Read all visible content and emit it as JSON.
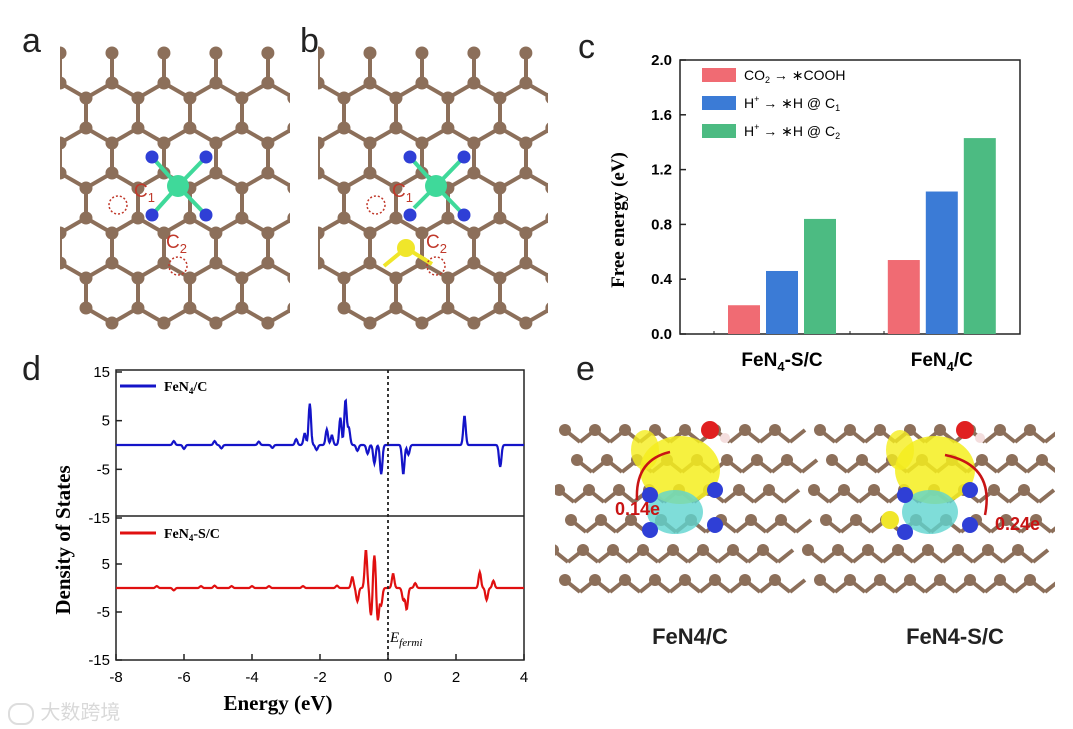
{
  "panels": {
    "a": {
      "letter": "a",
      "site1": "C",
      "site1_sub": "1",
      "site2": "C",
      "site2_sub": "2"
    },
    "b": {
      "letter": "b",
      "site1": "C",
      "site1_sub": "1",
      "site2": "C",
      "site2_sub": "2"
    },
    "c": {
      "letter": "c"
    },
    "d": {
      "letter": "d"
    },
    "e": {
      "letter": "e",
      "left_label": "FeN4/C",
      "left_charge": "0.14e",
      "right_label": "FeN4-S/C",
      "right_charge": "0.24e"
    }
  },
  "colors": {
    "carbon": "#8c6f5a",
    "nitrogen": "#2f3fd6",
    "iron": "#3fd99a",
    "sulfur": "#f0e62a",
    "circle": "#c0392b",
    "red_series": "#f06b73",
    "blue_series": "#3b7bd6",
    "green_series": "#4cbb82"
  },
  "chart_data": [
    {
      "type": "bar",
      "title": "",
      "ylabel": "Free energy (eV)",
      "xlabel": "",
      "ylim": [
        0.0,
        2.0
      ],
      "yticks": [
        "0.0",
        "0.4",
        "0.8",
        "1.2",
        "1.6",
        "2.0"
      ],
      "categories": [
        "FeN4-S/C",
        "FeN4/C"
      ],
      "series": [
        {
          "name": "CO2 → *COOH",
          "values": [
            0.21,
            0.54
          ]
        },
        {
          "name": "H+ → *H @ C1",
          "values": [
            0.46,
            1.04
          ]
        },
        {
          "name": "H+ → *H @ C2",
          "values": [
            0.84,
            1.43
          ]
        }
      ],
      "legend": "top-left"
    },
    {
      "type": "line",
      "xlabel": "Energy (eV)",
      "ylabel": "Density of States",
      "xlim": [
        -8,
        4
      ],
      "xticks": [
        "-8",
        "-6",
        "-4",
        "-2",
        "0",
        "2",
        "4"
      ],
      "yticks_top": [
        "15",
        "5",
        "-5",
        "-15"
      ],
      "yticks_bottom": [
        "5",
        "-5",
        "-15"
      ],
      "fermi_label": "E",
      "fermi_sub": "fermi",
      "series": [
        {
          "name": "FeN4/C",
          "peaks": [
            [
              -6.3,
              0.8
            ],
            [
              -6.0,
              -0.8
            ],
            [
              -5.1,
              0.8
            ],
            [
              -4.9,
              -0.7
            ],
            [
              -3.8,
              0.7
            ],
            [
              -3.4,
              -0.6
            ],
            [
              -2.7,
              1.2
            ],
            [
              -2.45,
              2.4
            ],
            [
              -2.3,
              8.5
            ],
            [
              -2.1,
              -1.0
            ],
            [
              -1.8,
              3.2
            ],
            [
              -1.65,
              2.0
            ],
            [
              -1.4,
              5.6
            ],
            [
              -1.25,
              9.3
            ],
            [
              -1.15,
              3.5
            ],
            [
              -0.9,
              -1.2
            ],
            [
              -0.6,
              -1.8
            ],
            [
              -0.4,
              -3.8
            ],
            [
              -0.2,
              -6.0
            ],
            [
              0.45,
              -6.0
            ],
            [
              0.6,
              -2.0
            ],
            [
              2.25,
              6.0
            ],
            [
              3.3,
              -4.5
            ]
          ]
        },
        {
          "name": "FeN4-S/C",
          "peaks": [
            [
              -6.8,
              0.4
            ],
            [
              -6.3,
              -0.5
            ],
            [
              -5.5,
              0.4
            ],
            [
              -5.1,
              0.5
            ],
            [
              -4.6,
              0.4
            ],
            [
              -4.0,
              0.4
            ],
            [
              -3.5,
              0.4
            ],
            [
              -2.5,
              0.4
            ],
            [
              -1.5,
              0.5
            ],
            [
              -1.05,
              2.3
            ],
            [
              -0.9,
              -2.8
            ],
            [
              -0.65,
              8.0
            ],
            [
              -0.5,
              -5.8
            ],
            [
              -0.4,
              7.0
            ],
            [
              -0.3,
              -6.8
            ],
            [
              -0.2,
              -3.5
            ],
            [
              0.15,
              3.0
            ],
            [
              0.45,
              -2.5
            ],
            [
              0.55,
              -4.5
            ],
            [
              0.8,
              1.0
            ],
            [
              2.7,
              3.3
            ],
            [
              2.9,
              -2.5
            ],
            [
              3.1,
              1.5
            ]
          ]
        }
      ]
    }
  ],
  "watermark": "大数跨境"
}
